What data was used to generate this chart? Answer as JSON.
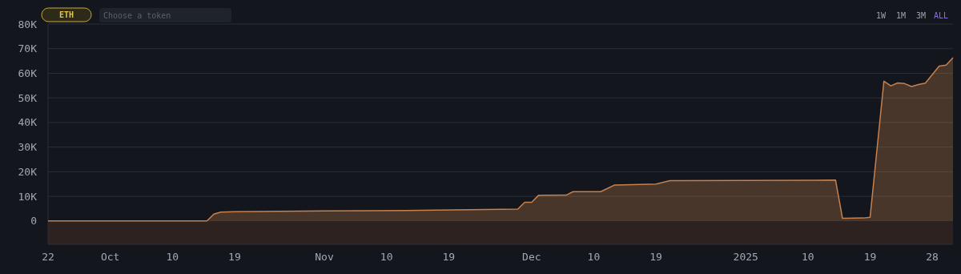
{
  "chart_data": {
    "type": "area",
    "x": [
      "2024-09-22",
      "2024-10-15",
      "2024-10-16",
      "2024-10-17",
      "2024-10-19",
      "2024-11-01",
      "2024-11-15",
      "2024-11-29",
      "2024-11-30",
      "2024-12-01",
      "2024-12-02",
      "2024-12-06",
      "2024-12-07",
      "2024-12-11",
      "2024-12-13",
      "2024-12-19",
      "2024-12-21",
      "2025-01-14",
      "2025-01-15",
      "2025-01-18",
      "2025-01-19",
      "2025-01-21",
      "2025-01-22",
      "2025-01-23",
      "2025-01-24",
      "2025-01-25",
      "2025-01-26",
      "2025-01-27",
      "2025-01-29",
      "2025-01-30",
      "2025-01-31"
    ],
    "series": [
      {
        "color": "#c8804c",
        "values": [
          0,
          0,
          2800,
          3600,
          3800,
          4100,
          4300,
          4800,
          7600,
          7600,
          10400,
          10500,
          11900,
          11900,
          14600,
          15000,
          16400,
          16600,
          1100,
          1200,
          1500,
          56800,
          54900,
          56100,
          55800,
          54600,
          55400,
          56000,
          62900,
          63300,
          66300
        ]
      }
    ],
    "xlim": [
      "2024-09-22",
      "2025-01-31"
    ],
    "xticks": [
      {
        "value": "2024-09-22",
        "label": "22"
      },
      {
        "value": "2024-10-01",
        "label": "Oct"
      },
      {
        "value": "2024-10-10",
        "label": "10"
      },
      {
        "value": "2024-10-19",
        "label": "19"
      },
      {
        "value": "2024-11-01",
        "label": "Nov"
      },
      {
        "value": "2024-11-10",
        "label": "10"
      },
      {
        "value": "2024-11-19",
        "label": "19"
      },
      {
        "value": "2024-12-01",
        "label": "Dec"
      },
      {
        "value": "2024-12-10",
        "label": "10"
      },
      {
        "value": "2024-12-19",
        "label": "19"
      },
      {
        "value": "2025-01-01",
        "label": "2025"
      },
      {
        "value": "2025-01-10",
        "label": "10"
      },
      {
        "value": "2025-01-19",
        "label": "19"
      },
      {
        "value": "2025-01-28",
        "label": "28"
      }
    ],
    "ylim": [
      -9500,
      80000
    ],
    "yticks": [
      0,
      {
        "value": 10000,
        "label": "10K"
      },
      {
        "value": 20000,
        "label": "20K"
      },
      {
        "value": 30000,
        "label": "30K"
      },
      {
        "value": 40000,
        "label": "40K"
      },
      {
        "value": 50000,
        "label": "50K"
      },
      {
        "value": 60000,
        "label": "60K"
      },
      {
        "value": 70000,
        "label": "70K"
      },
      {
        "value": 80000,
        "label": "80K"
      }
    ],
    "grid": "y",
    "bands": [
      {
        "axis": "y",
        "from": -9500,
        "to": 0,
        "color": "#2e2220"
      }
    ],
    "annotations": [
      "ETH",
      "Choose a token",
      "1W",
      "1M",
      "3M",
      "ALL"
    ]
  }
}
